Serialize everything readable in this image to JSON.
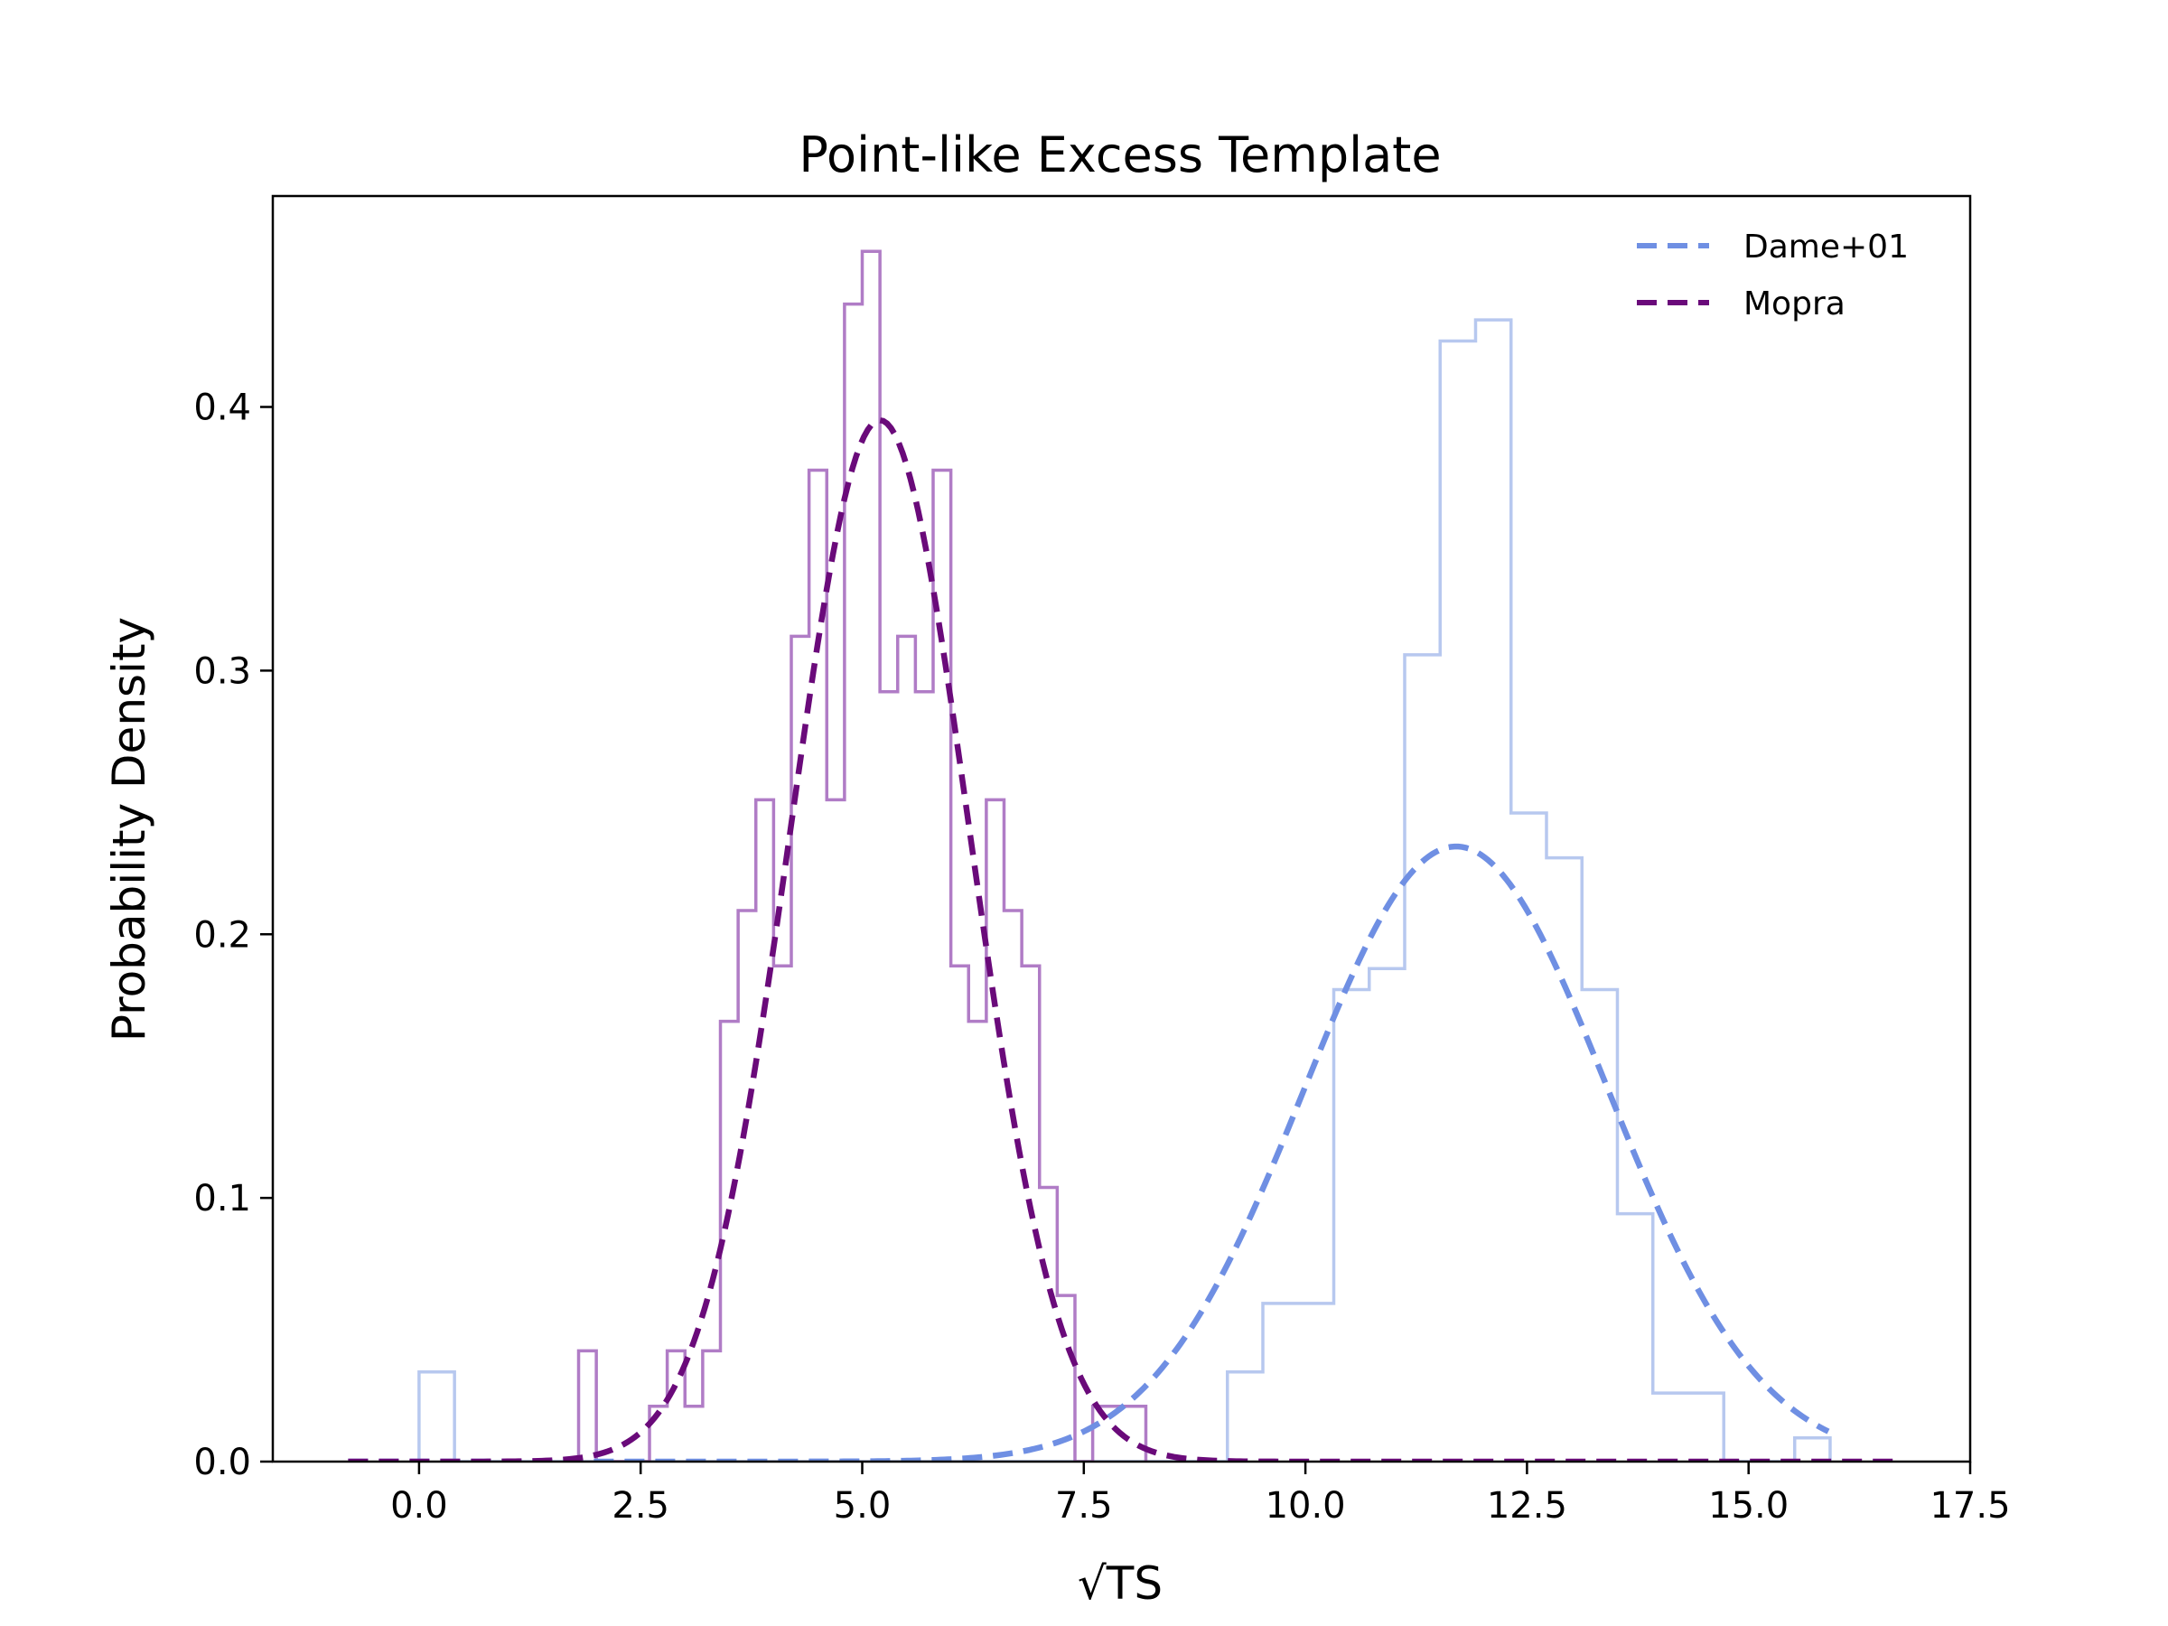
{
  "chart_data": {
    "type": "histogram+line",
    "title": "Point-like Excess Template",
    "xlabel": "√TS",
    "ylabel": "Probability Density",
    "xlim": [
      -1.65,
      17.5
    ],
    "ylim": [
      0,
      0.48
    ],
    "x_ticks": [
      0.0,
      2.5,
      5.0,
      7.5,
      10.0,
      12.5,
      15.0,
      17.5
    ],
    "x_tick_labels": [
      "0.0",
      "2.5",
      "5.0",
      "7.5",
      "10.0",
      "12.5",
      "15.0",
      "17.5"
    ],
    "y_ticks": [
      0.0,
      0.1,
      0.2,
      0.3,
      0.4
    ],
    "y_tick_labels": [
      "0.0",
      "0.1",
      "0.2",
      "0.3",
      "0.4"
    ],
    "legend_position": "upper-right",
    "grid": false,
    "series": [
      {
        "name": "Dame+01",
        "color": "#6f8fe3",
        "hist_color": "#b7c8ef",
        "gauss_mean": 11.7,
        "gauss_sigma": 1.71,
        "curve_range": [
          -0.8,
          15.9
        ],
        "hist": {
          "edges": [
            0.0,
            0.4,
            0.8,
            1.2,
            1.6,
            2.0,
            2.4,
            2.8,
            3.2,
            3.6,
            4.0,
            4.4,
            4.8,
            5.2,
            5.6,
            6.0,
            6.4,
            6.8,
            7.2,
            7.6,
            8.0,
            8.4,
            8.8,
            9.12,
            9.52,
            9.92,
            10.32,
            10.72,
            11.12,
            11.52,
            11.92,
            12.32,
            12.72,
            13.12,
            13.52,
            13.92,
            14.32,
            14.72,
            15.12,
            15.52,
            15.92
          ],
          "values": [
            0.034,
            0,
            0,
            0,
            0,
            0,
            0,
            0,
            0,
            0,
            0,
            0,
            0,
            0,
            0,
            0,
            0,
            0,
            0,
            0,
            0,
            0,
            0,
            0.034,
            0.06,
            0.06,
            0.179,
            0.187,
            0.306,
            0.425,
            0.433,
            0.246,
            0.229,
            0.179,
            0.094,
            0.026,
            0.026,
            0,
            0,
            0.009
          ]
        }
      },
      {
        "name": "Mopra",
        "color": "#6a0a7a",
        "hist_color": "#b07cc6",
        "gauss_mean": 5.2,
        "gauss_sigma": 1.01,
        "curve_range": [
          -0.8,
          16.7
        ],
        "hist": {
          "edges": [
            1.8,
            2.0,
            2.2,
            2.4,
            2.6,
            2.8,
            3.0,
            3.2,
            3.4,
            3.6,
            3.8,
            4.0,
            4.2,
            4.4,
            4.6,
            4.8,
            5.0,
            5.2,
            5.4,
            5.6,
            5.8,
            6.0,
            6.2,
            6.4,
            6.6,
            6.8,
            7.0,
            7.2,
            7.4,
            7.6,
            7.8,
            8.0,
            8.2
          ],
          "values": [
            0.042,
            0.0,
            0.0,
            0.0,
            0.021,
            0.042,
            0.021,
            0.042,
            0.167,
            0.209,
            0.251,
            0.188,
            0.313,
            0.376,
            0.251,
            0.439,
            0.459,
            0.292,
            0.313,
            0.292,
            0.376,
            0.188,
            0.167,
            0.251,
            0.209,
            0.188,
            0.104,
            0.063,
            0.0,
            0.021,
            0.021,
            0.021
          ]
        }
      }
    ]
  }
}
